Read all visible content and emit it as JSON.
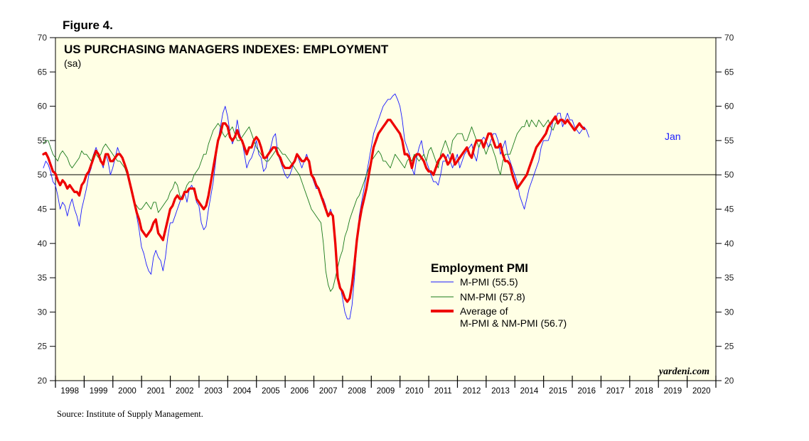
{
  "figure_label": "Figure 4.",
  "source": "Source: Institute of Supply Management.",
  "watermark": "yardeni.com",
  "chart_data": {
    "type": "line",
    "title": "US PURCHASING MANAGERS INDEXES: EMPLOYMENT",
    "subtitle": "(sa)",
    "ylim": [
      20,
      70
    ],
    "y_ticks": [
      20,
      25,
      30,
      35,
      40,
      45,
      50,
      55,
      60,
      65,
      70
    ],
    "x_range": [
      1998,
      2021
    ],
    "x_ticks": [
      "1998",
      "1999",
      "2000",
      "2001",
      "2002",
      "2003",
      "2004",
      "2005",
      "2006",
      "2007",
      "2008",
      "2009",
      "2010",
      "2011",
      "2012",
      "2013",
      "2014",
      "2015",
      "2016",
      "2017",
      "2018",
      "2019",
      "2020"
    ],
    "reference_line": 50,
    "legend_title": "Employment PMI",
    "end_label": "Jan",
    "background_color": "#ffffe5",
    "series": [
      {
        "name": "M-PMI (55.5)",
        "color": "#1a1aff",
        "width": 0.9,
        "start": 1997.58,
        "values": [
          51,
          52,
          51.5,
          50.5,
          49,
          48.5,
          47,
          45,
          46,
          45.5,
          44,
          45.5,
          46.5,
          45,
          44,
          42.5,
          45,
          46.5,
          48,
          50,
          51,
          53,
          54,
          53,
          52,
          51,
          53,
          52,
          50,
          51,
          52.5,
          54,
          53,
          52.5,
          51.5,
          50.5,
          49,
          48,
          46,
          44,
          42,
          39.5,
          38.5,
          37,
          36,
          35.5,
          38,
          39,
          38,
          37.5,
          36,
          38,
          41,
          43,
          43,
          44,
          45,
          46,
          47,
          47.5,
          46,
          48,
          48.5,
          47.5,
          46,
          45.5,
          43,
          42,
          42.5,
          45,
          47,
          49,
          52,
          55,
          57,
          59,
          60,
          58.5,
          56,
          54.5,
          55.5,
          58,
          56,
          55,
          53,
          51,
          52,
          52.5,
          53.5,
          55,
          53,
          52.5,
          50.5,
          51,
          53,
          54,
          55.5,
          56,
          53,
          52,
          51,
          50,
          49.5,
          50,
          51,
          52,
          53,
          52,
          51,
          52,
          53,
          52,
          50,
          49,
          48,
          48,
          47,
          46.5,
          45.5,
          44,
          45,
          44,
          40,
          35,
          34,
          32,
          30,
          29,
          29,
          31,
          35,
          40,
          44,
          46,
          48,
          50,
          52,
          54,
          56,
          57,
          58,
          59,
          60,
          60.5,
          61,
          61,
          61.5,
          61.8,
          61,
          60,
          58,
          55,
          54,
          53,
          51,
          50,
          52.5,
          54,
          55,
          53,
          52,
          51,
          50,
          49,
          49,
          48.5,
          50,
          52,
          52,
          53,
          52,
          51,
          52,
          53,
          51,
          52,
          53,
          53.5,
          54,
          54.5,
          53,
          52,
          54,
          55,
          55.5,
          55,
          54,
          55,
          56,
          56,
          55,
          53,
          54,
          55,
          53,
          52,
          51,
          50,
          49,
          47,
          46,
          45,
          46.5,
          48,
          49,
          50,
          51,
          52,
          54,
          55,
          55,
          55,
          56,
          58,
          58,
          59,
          59,
          57,
          58,
          59,
          58,
          58,
          57,
          56.5,
          56,
          56.5,
          57,
          56.5,
          55.5
        ]
      },
      {
        "name": "NM-PMI (57.8)",
        "color": "#1a7a1a",
        "width": 0.9,
        "start": 1997.58,
        "values": [
          54.5,
          55,
          55,
          54,
          53,
          52.5,
          52,
          53,
          53.5,
          53,
          52.5,
          51.5,
          51,
          51.5,
          52,
          52.5,
          53.5,
          53,
          53,
          52.5,
          52,
          53,
          53,
          52.5,
          53,
          54,
          54.5,
          54,
          53.5,
          53,
          52.5,
          52,
          52,
          51.5,
          51,
          50,
          48.5,
          47,
          46,
          45.5,
          45,
          45,
          45.5,
          46,
          45.5,
          45,
          46,
          46,
          44.5,
          45,
          45.5,
          46,
          46.5,
          47.5,
          48,
          49,
          48.5,
          47,
          46.5,
          47.5,
          48.5,
          49,
          49,
          50,
          50.5,
          51,
          52,
          53,
          53,
          54.5,
          55.5,
          56.5,
          57,
          57.5,
          57,
          56,
          55.5,
          56,
          56.5,
          57,
          56,
          55,
          55,
          55.5,
          56,
          56.5,
          57,
          56,
          55,
          54,
          53.5,
          53,
          52.5,
          52,
          52,
          52.5,
          53,
          53.5,
          54,
          53.5,
          53,
          53,
          52.5,
          52,
          51.5,
          51,
          50.5,
          50,
          49,
          48,
          47,
          46,
          45,
          44.5,
          44,
          43.5,
          43,
          40,
          36,
          34,
          33,
          33.5,
          35,
          36.5,
          38,
          39,
          41,
          42,
          43.5,
          44.5,
          45.5,
          46.5,
          47,
          48,
          49,
          50,
          51,
          52,
          52.5,
          53,
          53.5,
          53,
          52,
          52,
          51.5,
          51,
          52,
          53,
          52.5,
          52,
          51.5,
          51,
          52,
          52.5,
          52,
          53,
          52.5,
          52,
          52.5,
          53,
          52,
          53.5,
          54,
          53,
          52,
          51,
          53,
          54,
          55,
          54,
          53,
          55,
          55.5,
          56,
          56,
          56,
          55,
          55,
          56,
          57,
          56,
          55,
          54,
          55,
          54,
          53,
          54,
          54.5,
          53.5,
          52.5,
          51,
          50,
          52,
          53,
          53,
          53,
          54,
          55,
          56,
          56.5,
          57,
          57,
          58,
          57,
          58,
          57.5,
          57,
          58,
          57.5,
          57,
          57.5,
          58,
          57,
          56.5,
          57.5,
          57.8
        ]
      },
      {
        "name": "Average of M-PMI & NM-PMI (56.7)",
        "color": "#ee0000",
        "width": 3.3,
        "start": 1997.58,
        "values": [
          53,
          53.2,
          52.5,
          51.5,
          50.5,
          50.2,
          49.2,
          48.5,
          49.2,
          48.8,
          48,
          48.5,
          48,
          47.5,
          47.5,
          47,
          48.5,
          49,
          50,
          50.5,
          51.5,
          52.5,
          53.5,
          53,
          52,
          51.5,
          53,
          53,
          52,
          52,
          52.5,
          53,
          53,
          52.5,
          51.5,
          50.5,
          49,
          47.5,
          46,
          44.5,
          43.5,
          42,
          41.5,
          41,
          41.5,
          42,
          43,
          43.5,
          41.5,
          41,
          40.5,
          42,
          43.5,
          45,
          45.5,
          46.5,
          47,
          46.5,
          46.5,
          47.5,
          47.5,
          48,
          48,
          48,
          46.5,
          46,
          45.5,
          45,
          45.5,
          47,
          49,
          51,
          53,
          55,
          56,
          57.5,
          57.5,
          57,
          55.5,
          55,
          55.5,
          56.5,
          55.5,
          55,
          54,
          53,
          54,
          54,
          55,
          55.5,
          55,
          54,
          52.5,
          52.5,
          53,
          53.5,
          54,
          54,
          53,
          52.5,
          51.5,
          51,
          51,
          51,
          51.5,
          52,
          53,
          52.5,
          52,
          52,
          52.5,
          52,
          50,
          49.5,
          48.5,
          48,
          47,
          46,
          45,
          44,
          44.5,
          44,
          40,
          35,
          33.5,
          33,
          32,
          31.5,
          32,
          34,
          37,
          40.5,
          43,
          45,
          46.5,
          48,
          50,
          52,
          54,
          55,
          56,
          56.5,
          57,
          57.5,
          58,
          58,
          57.5,
          57,
          56.5,
          56,
          55,
          53,
          53,
          52.5,
          51,
          52.5,
          53,
          53,
          52.5,
          52,
          51,
          50.5,
          50.5,
          50,
          51,
          52,
          52.5,
          53,
          52.5,
          51.5,
          52,
          53,
          51.5,
          52,
          52.5,
          53,
          53.5,
          54,
          53,
          52.5,
          54,
          55,
          55,
          55,
          54,
          55,
          56,
          56,
          55,
          54,
          54,
          54.5,
          53,
          52,
          52,
          51.5,
          50,
          49,
          48,
          48.5,
          49,
          49.5,
          50,
          51,
          52,
          53,
          54,
          54.5,
          55,
          55.5,
          56,
          57,
          57.5,
          58,
          58.5,
          57.5,
          58,
          58,
          57.5,
          58,
          57.5,
          57,
          56.5,
          57,
          57.5,
          57,
          56.7
        ]
      }
    ]
  }
}
